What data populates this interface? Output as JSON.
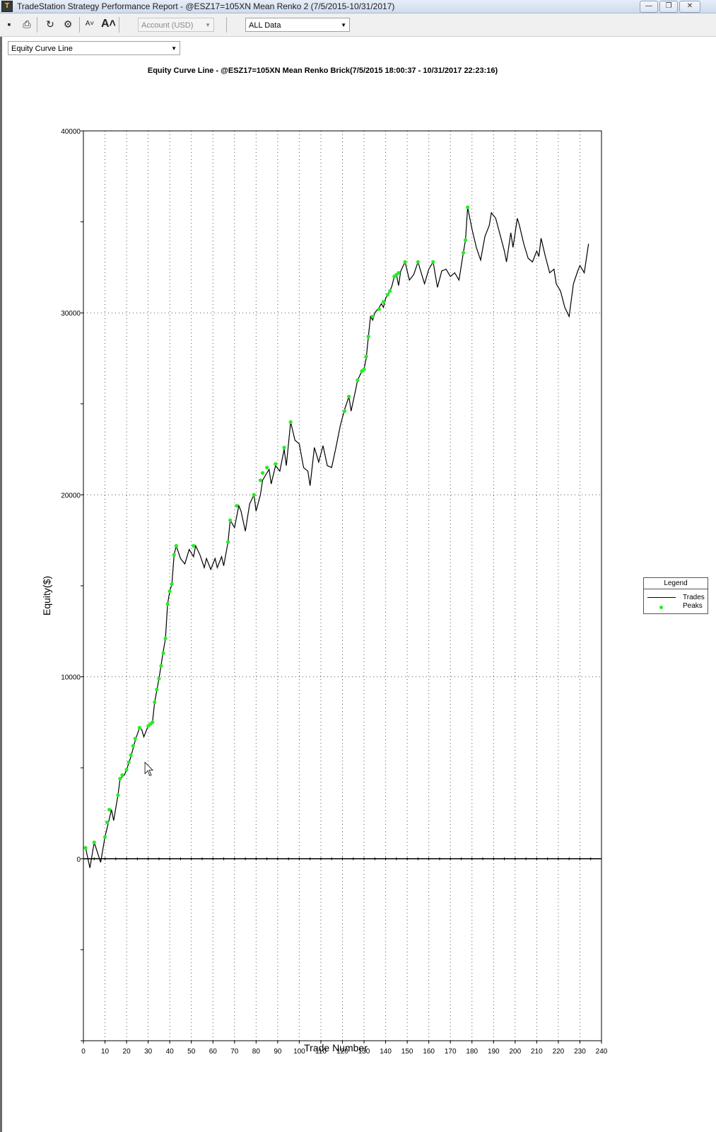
{
  "window": {
    "title": "TradeStation Strategy Performance Report - @ESZ17=105XN Mean Renko 2 (7/5/2015-10/31/2017)",
    "controls": [
      "minimize",
      "restore",
      "close"
    ]
  },
  "toolbar": {
    "account_label": "Account (USD)",
    "data_range_label": "ALL Data",
    "icons": [
      "save-icon",
      "print-icon",
      "refresh-icon",
      "properties-icon",
      "font-smaller-icon",
      "font-larger-icon"
    ]
  },
  "view_selector": {
    "selected": "Equity Curve Line"
  },
  "chart": {
    "title": "Equity Curve Line - @ESZ17=105XN Mean Renko Brick(7/5/2015 18:00:37 - 10/31/2017 22:23:16)",
    "ylabel": "Equity($)",
    "xlabel": "Trade Number",
    "legend": {
      "title": "Legend",
      "trades": "Trades",
      "peaks": "Peaks"
    }
  },
  "chart_data": {
    "type": "line",
    "xlim": [
      0,
      240
    ],
    "ylim": [
      -10000,
      40000
    ],
    "xticks": [
      0,
      10,
      20,
      30,
      40,
      50,
      60,
      70,
      80,
      90,
      100,
      110,
      120,
      130,
      140,
      150,
      160,
      170,
      180,
      190,
      200,
      210,
      220,
      230,
      240
    ],
    "yticks": [
      0,
      10000,
      20000,
      30000,
      40000
    ],
    "grid": true,
    "legend_position": "right",
    "series": [
      {
        "name": "Trades",
        "color": "#000000",
        "points": [
          [
            1,
            600
          ],
          [
            3,
            -500
          ],
          [
            5,
            900
          ],
          [
            8,
            -200
          ],
          [
            10,
            1200
          ],
          [
            12,
            2200
          ],
          [
            13,
            2700
          ],
          [
            14,
            2100
          ],
          [
            16,
            3500
          ],
          [
            17,
            4400
          ],
          [
            19,
            4600
          ],
          [
            20,
            4900
          ],
          [
            22,
            5600
          ],
          [
            24,
            6500
          ],
          [
            26,
            7200
          ],
          [
            27,
            7100
          ],
          [
            28,
            6700
          ],
          [
            30,
            7300
          ],
          [
            32,
            7500
          ],
          [
            33,
            8600
          ],
          [
            35,
            9900
          ],
          [
            37,
            11400
          ],
          [
            38,
            12100
          ],
          [
            39,
            14000
          ],
          [
            40,
            14700
          ],
          [
            41,
            15100
          ],
          [
            42,
            16700
          ],
          [
            43,
            17200
          ],
          [
            45,
            16500
          ],
          [
            47,
            16200
          ],
          [
            49,
            17000
          ],
          [
            51,
            16600
          ],
          [
            52,
            17200
          ],
          [
            54,
            16700
          ],
          [
            56,
            16000
          ],
          [
            57,
            16500
          ],
          [
            59,
            15900
          ],
          [
            61,
            16500
          ],
          [
            62,
            16000
          ],
          [
            64,
            16600
          ],
          [
            65,
            16100
          ],
          [
            67,
            17400
          ],
          [
            68,
            18600
          ],
          [
            70,
            18200
          ],
          [
            71,
            18800
          ],
          [
            72,
            19400
          ],
          [
            73,
            19100
          ],
          [
            75,
            18000
          ],
          [
            77,
            19500
          ],
          [
            79,
            20000
          ],
          [
            80,
            19100
          ],
          [
            82,
            20000
          ],
          [
            83,
            20800
          ],
          [
            85,
            21200
          ],
          [
            86,
            21400
          ],
          [
            87,
            20600
          ],
          [
            89,
            21600
          ],
          [
            91,
            21300
          ],
          [
            93,
            22500
          ],
          [
            94,
            21600
          ],
          [
            96,
            24000
          ],
          [
            98,
            23000
          ],
          [
            100,
            22800
          ],
          [
            102,
            21500
          ],
          [
            104,
            21300
          ],
          [
            105,
            20500
          ],
          [
            107,
            22600
          ],
          [
            109,
            21800
          ],
          [
            111,
            22700
          ],
          [
            113,
            21600
          ],
          [
            115,
            21500
          ],
          [
            117,
            22600
          ],
          [
            119,
            23800
          ],
          [
            121,
            24700
          ],
          [
            123,
            25400
          ],
          [
            124,
            24600
          ],
          [
            126,
            25700
          ],
          [
            127,
            26300
          ],
          [
            129,
            26800
          ],
          [
            130,
            26900
          ],
          [
            131,
            27500
          ],
          [
            132,
            28700
          ],
          [
            133,
            29800
          ],
          [
            134,
            29600
          ],
          [
            135,
            30000
          ],
          [
            137,
            30300
          ],
          [
            138,
            30500
          ],
          [
            139,
            30300
          ],
          [
            140,
            30800
          ],
          [
            141,
            31000
          ],
          [
            142,
            31200
          ],
          [
            143,
            31500
          ],
          [
            144,
            32000
          ],
          [
            145,
            32100
          ],
          [
            146,
            31500
          ],
          [
            147,
            32300
          ],
          [
            149,
            32800
          ],
          [
            151,
            31800
          ],
          [
            153,
            32100
          ],
          [
            155,
            32800
          ],
          [
            157,
            32000
          ],
          [
            158,
            31600
          ],
          [
            160,
            32400
          ],
          [
            162,
            32800
          ],
          [
            164,
            31400
          ],
          [
            166,
            32300
          ],
          [
            168,
            32400
          ],
          [
            170,
            32000
          ],
          [
            172,
            32200
          ],
          [
            174,
            31800
          ],
          [
            176,
            33300
          ],
          [
            177,
            34000
          ],
          [
            178,
            35800
          ],
          [
            180,
            34600
          ],
          [
            182,
            33600
          ],
          [
            184,
            32900
          ],
          [
            186,
            34200
          ],
          [
            188,
            34800
          ],
          [
            189,
            35500
          ],
          [
            191,
            35200
          ],
          [
            193,
            34300
          ],
          [
            195,
            33400
          ],
          [
            196,
            32800
          ],
          [
            198,
            34400
          ],
          [
            199,
            33600
          ],
          [
            201,
            35200
          ],
          [
            202,
            34800
          ],
          [
            204,
            33800
          ],
          [
            206,
            33000
          ],
          [
            208,
            32800
          ],
          [
            210,
            33400
          ],
          [
            211,
            33100
          ],
          [
            212,
            34100
          ],
          [
            214,
            33100
          ],
          [
            216,
            32200
          ],
          [
            218,
            32400
          ],
          [
            219,
            31600
          ],
          [
            221,
            31200
          ],
          [
            223,
            30300
          ],
          [
            225,
            29800
          ],
          [
            227,
            31600
          ],
          [
            229,
            32300
          ],
          [
            230,
            32600
          ],
          [
            232,
            32200
          ],
          [
            234,
            33800
          ]
        ]
      },
      {
        "name": "Peaks",
        "color": "#22ee22",
        "points": [
          [
            1,
            600
          ],
          [
            5,
            900
          ],
          [
            10,
            1200
          ],
          [
            11,
            2000
          ],
          [
            12,
            2700
          ],
          [
            16,
            3500
          ],
          [
            17,
            4400
          ],
          [
            18,
            4600
          ],
          [
            20,
            4900
          ],
          [
            21,
            5300
          ],
          [
            22,
            5700
          ],
          [
            23,
            6200
          ],
          [
            24,
            6600
          ],
          [
            26,
            7200
          ],
          [
            30,
            7300
          ],
          [
            31,
            7400
          ],
          [
            32,
            7500
          ],
          [
            33,
            8600
          ],
          [
            34,
            9300
          ],
          [
            35,
            9900
          ],
          [
            36,
            10600
          ],
          [
            37,
            11300
          ],
          [
            38,
            12100
          ],
          [
            39,
            14000
          ],
          [
            40,
            14700
          ],
          [
            41,
            15100
          ],
          [
            42,
            16700
          ],
          [
            43,
            17200
          ],
          [
            51,
            17200
          ],
          [
            67,
            17400
          ],
          [
            68,
            18600
          ],
          [
            71,
            19400
          ],
          [
            79,
            20000
          ],
          [
            82,
            20800
          ],
          [
            83,
            21200
          ],
          [
            85,
            21500
          ],
          [
            89,
            21700
          ],
          [
            93,
            22600
          ],
          [
            96,
            24000
          ],
          [
            121,
            24600
          ],
          [
            123,
            25400
          ],
          [
            127,
            26300
          ],
          [
            129,
            26800
          ],
          [
            130,
            26900
          ],
          [
            131,
            27600
          ],
          [
            132,
            28700
          ],
          [
            134,
            29800
          ],
          [
            137,
            30200
          ],
          [
            139,
            30600
          ],
          [
            141,
            31000
          ],
          [
            142,
            31200
          ],
          [
            144,
            32000
          ],
          [
            145,
            32100
          ],
          [
            146,
            32200
          ],
          [
            149,
            32800
          ],
          [
            155,
            32800
          ],
          [
            162,
            32800
          ],
          [
            176,
            33300
          ],
          [
            177,
            34000
          ],
          [
            178,
            35800
          ]
        ]
      }
    ]
  }
}
